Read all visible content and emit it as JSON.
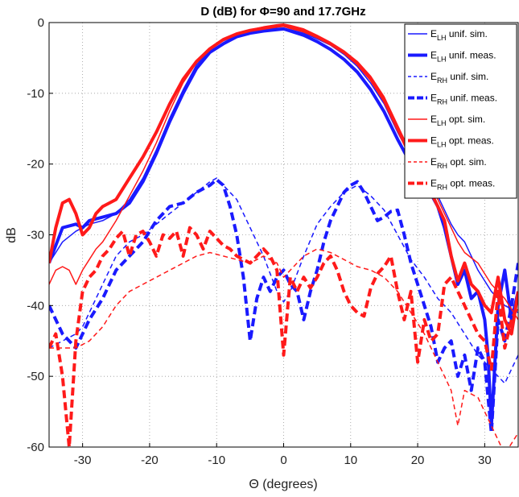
{
  "chart_data": {
    "type": "line",
    "title": "D (dB) for Φ=90 and 17.7GHz",
    "xlabel": "Θ (degrees)",
    "ylabel": "dB",
    "xlim": [
      -35,
      35
    ],
    "ylim": [
      -60,
      0
    ],
    "xticks": [
      -30,
      -20,
      -10,
      0,
      10,
      20,
      30
    ],
    "yticks": [
      0,
      -10,
      -20,
      -30,
      -40,
      -50,
      -60
    ],
    "grid": true,
    "legend_position": "top-right",
    "series": [
      {
        "name": "E_LH unif. sim.",
        "legend_main": "E",
        "legend_sub": "LH",
        "legend_rest": " unif. sim.",
        "color": "#1a1aff",
        "width": 1.5,
        "dash": "solid",
        "x": [
          -35,
          -33,
          -31,
          -30,
          -29,
          -27,
          -25,
          -23,
          -21,
          -19,
          -17,
          -15,
          -13,
          -11,
          -9,
          -7,
          -5,
          -3,
          -1,
          0,
          1,
          3,
          5,
          7,
          9,
          11,
          13,
          15,
          17,
          19,
          21,
          23,
          25,
          26,
          27,
          29,
          31,
          32,
          33,
          35
        ],
        "y": [
          -34,
          -31,
          -29.5,
          -29,
          -28.5,
          -28,
          -27,
          -25,
          -22,
          -18,
          -13.5,
          -9.5,
          -6,
          -3.8,
          -2.6,
          -1.8,
          -1.3,
          -1,
          -0.8,
          -0.8,
          -1,
          -1.5,
          -2.3,
          -3.2,
          -4.5,
          -6.2,
          -8.6,
          -11.5,
          -15.5,
          -19,
          -21.5,
          -24.5,
          -28.5,
          -30,
          -31,
          -35,
          -38,
          -39,
          -40,
          -41
        ]
      },
      {
        "name": "E_LH unif. meas.",
        "legend_main": "E",
        "legend_sub": "LH",
        "legend_rest": " unif. meas.",
        "color": "#1a1aff",
        "width": 4,
        "dash": "solid",
        "x": [
          -35,
          -33,
          -31,
          -30,
          -29,
          -27,
          -25,
          -23,
          -21,
          -19,
          -17,
          -15,
          -13,
          -11,
          -9,
          -7,
          -5,
          -3,
          -1,
          0,
          1,
          3,
          5,
          7,
          9,
          11,
          13,
          15,
          17,
          19,
          21,
          23,
          24,
          25,
          26,
          27,
          28,
          29,
          30,
          30.5,
          31,
          32,
          33,
          34,
          35
        ],
        "y": [
          -34,
          -29,
          -28.5,
          -29,
          -28,
          -27.5,
          -27,
          -25.5,
          -22.5,
          -18.5,
          -14,
          -10,
          -6.5,
          -4.2,
          -3,
          -2,
          -1.5,
          -1.2,
          -1,
          -0.9,
          -1.2,
          -1.8,
          -2.7,
          -3.8,
          -5.2,
          -7,
          -9.5,
          -12.6,
          -16.5,
          -20,
          -22.5,
          -26,
          -29,
          -33,
          -37,
          -35,
          -39,
          -38,
          -42,
          -47,
          -57,
          -40,
          -35,
          -42,
          -38
        ]
      },
      {
        "name": "E_RH unif. sim.",
        "legend_main": "E",
        "legend_sub": "RH",
        "legend_rest": " unif. sim.",
        "color": "#1a1aff",
        "width": 1.5,
        "dash": "6,4",
        "x": [
          -35,
          -33,
          -31,
          -30,
          -29,
          -27,
          -25,
          -23,
          -21,
          -19,
          -17,
          -15,
          -13,
          -11,
          -10,
          -9,
          -7,
          -5,
          -3,
          -1,
          0,
          1,
          3,
          5,
          7,
          9,
          11,
          13,
          15,
          17,
          19,
          21,
          23,
          25,
          27,
          29,
          31,
          33,
          35
        ],
        "y": [
          -46,
          -45,
          -44,
          -43,
          -41,
          -37,
          -33,
          -31,
          -30,
          -28.5,
          -27,
          -25.5,
          -24,
          -22.5,
          -22,
          -23,
          -25,
          -29,
          -33,
          -38,
          -39.5,
          -38,
          -33,
          -28.5,
          -26,
          -24,
          -23,
          -24.5,
          -26.5,
          -30,
          -33.5,
          -36,
          -39,
          -41,
          -44,
          -47,
          -49,
          -51,
          -47
        ]
      },
      {
        "name": "E_RH unif. meas.",
        "legend_main": "E",
        "legend_sub": "RH",
        "legend_rest": " unif. meas.",
        "color": "#1a1aff",
        "width": 4,
        "dash": "10,5",
        "x": [
          -35,
          -33,
          -31,
          -29,
          -27,
          -25,
          -23,
          -21,
          -19,
          -17,
          -15,
          -13,
          -11,
          -10,
          -9,
          -8,
          -7,
          -6,
          -5,
          -4,
          -3,
          -2,
          -1,
          0,
          1,
          2,
          3,
          4,
          5,
          6,
          7,
          8,
          9,
          10,
          11,
          12,
          13,
          14,
          15,
          16,
          17,
          18,
          19,
          20,
          21,
          22,
          23,
          24,
          25,
          26,
          27,
          28,
          29,
          30,
          31,
          32,
          33,
          34,
          35
        ],
        "y": [
          -40,
          -44,
          -46,
          -42,
          -39,
          -35,
          -33,
          -31,
          -28,
          -26,
          -25.5,
          -24,
          -23,
          -22.2,
          -23,
          -26,
          -30,
          -36,
          -45,
          -39,
          -36,
          -38,
          -36,
          -35,
          -37,
          -38,
          -42,
          -38,
          -35,
          -31,
          -28,
          -26,
          -24,
          -23,
          -22.5,
          -24,
          -26,
          -28,
          -27.5,
          -26.7,
          -26.5,
          -30,
          -34,
          -37,
          -40,
          -43,
          -48,
          -46,
          -45,
          -50,
          -47,
          -52,
          -46,
          -48,
          -58,
          -42,
          -45,
          -40,
          -34
        ]
      },
      {
        "name": "E_LH opt. sim.",
        "legend_main": "E",
        "legend_sub": "LH",
        "legend_rest": " opt. sim.",
        "color": "#ff1a1a",
        "width": 1.5,
        "dash": "solid",
        "x": [
          -35,
          -34,
          -33,
          -32,
          -31,
          -30,
          -29,
          -28,
          -27,
          -25,
          -23,
          -21,
          -19,
          -17,
          -15,
          -13,
          -11,
          -9,
          -7,
          -5,
          -3,
          -1,
          0,
          1,
          3,
          5,
          7,
          9,
          11,
          13,
          15,
          17,
          19,
          21,
          23,
          25,
          26,
          27,
          29,
          31,
          33,
          35
        ],
        "y": [
          -37,
          -35,
          -34.5,
          -35,
          -37,
          -35,
          -33.5,
          -32,
          -31,
          -28,
          -24.5,
          -21,
          -17,
          -12.5,
          -8.5,
          -5.7,
          -3.8,
          -2.4,
          -1.5,
          -1,
          -0.6,
          -0.3,
          -0.2,
          -0.4,
          -0.9,
          -1.8,
          -2.8,
          -4,
          -5.5,
          -7.6,
          -10.5,
          -14.5,
          -18.5,
          -21.5,
          -25,
          -29,
          -31,
          -32.5,
          -34,
          -37,
          -39,
          -42
        ]
      },
      {
        "name": "E_LH opt. meas.",
        "legend_main": "E",
        "legend_sub": "LH",
        "legend_rest": " opt. meas.",
        "color": "#ff1a1a",
        "width": 4,
        "dash": "solid",
        "x": [
          -35,
          -34,
          -33,
          -32,
          -31,
          -30,
          -29,
          -28,
          -27,
          -25,
          -23,
          -21,
          -19,
          -17,
          -15,
          -13,
          -11,
          -9,
          -7,
          -5,
          -3,
          -1,
          0,
          1,
          3,
          5,
          7,
          9,
          11,
          13,
          15,
          17,
          19,
          21,
          23,
          24,
          25,
          26,
          27,
          28,
          29,
          30,
          31,
          32,
          33,
          34,
          35
        ],
        "y": [
          -34,
          -29,
          -25.5,
          -25,
          -27,
          -30,
          -29,
          -27,
          -26,
          -25,
          -22,
          -19,
          -15.5,
          -11.5,
          -8,
          -5.5,
          -3.7,
          -2.4,
          -1.6,
          -1.1,
          -0.8,
          -0.5,
          -0.4,
          -0.7,
          -1.2,
          -2,
          -3,
          -4.2,
          -5.8,
          -8,
          -11,
          -15,
          -19,
          -22,
          -26,
          -28,
          -33,
          -36.5,
          -34,
          -37,
          -38,
          -40,
          -41,
          -36,
          -42,
          -44,
          -38
        ]
      },
      {
        "name": "E_RH opt. sim.",
        "legend_main": "E",
        "legend_sub": "RH",
        "legend_rest": " opt. sim.",
        "color": "#ff1a1a",
        "width": 1.5,
        "dash": "6,4",
        "x": [
          -35,
          -33,
          -31,
          -29,
          -27,
          -25,
          -23,
          -21,
          -19,
          -17,
          -15,
          -13,
          -11,
          -9,
          -7,
          -5,
          -3,
          -1,
          0,
          1,
          3,
          5,
          7,
          9,
          11,
          13,
          15,
          17,
          19,
          21,
          23,
          25,
          26,
          27,
          29,
          31,
          33,
          35
        ],
        "y": [
          -46,
          -46,
          -46,
          -45,
          -43,
          -40,
          -38,
          -37,
          -36,
          -35,
          -34,
          -33,
          -32.5,
          -33,
          -33.5,
          -34,
          -33,
          -34,
          -36,
          -35,
          -33,
          -32,
          -32.5,
          -33.5,
          -34.5,
          -35,
          -36,
          -38,
          -41,
          -44,
          -48,
          -52,
          -57,
          -52,
          -53,
          -57,
          -61,
          -58
        ]
      },
      {
        "name": "E_RH opt. meas.",
        "legend_main": "E",
        "legend_sub": "RH",
        "legend_rest": " opt. meas.",
        "color": "#ff1a1a",
        "width": 4,
        "dash": "10,5",
        "x": [
          -35,
          -34,
          -33,
          -32,
          -31,
          -30,
          -29,
          -28,
          -27,
          -26,
          -25,
          -24,
          -23,
          -22,
          -21,
          -20,
          -19,
          -18,
          -17,
          -16,
          -15,
          -14,
          -13,
          -12,
          -11,
          -10,
          -9,
          -8,
          -7,
          -6,
          -5,
          -4,
          -3,
          -2,
          -1,
          0,
          1,
          2,
          3,
          4,
          5,
          6,
          7,
          8,
          9,
          10,
          11,
          12,
          13,
          14,
          15,
          16,
          17,
          18,
          19,
          20,
          21,
          22,
          23,
          24,
          25,
          26,
          27,
          28,
          29,
          30,
          31,
          32,
          33,
          34,
          35
        ],
        "y": [
          -46,
          -44,
          -50,
          -60,
          -45,
          -38,
          -36,
          -35,
          -33,
          -32,
          -30.5,
          -29.5,
          -33,
          -30,
          -29.5,
          -31,
          -33,
          -30,
          -30.5,
          -29.5,
          -33,
          -29,
          -30,
          -32,
          -29.5,
          -30.5,
          -31.5,
          -32,
          -33,
          -33.5,
          -34,
          -33,
          -32,
          -33,
          -35,
          -47,
          -36,
          -38,
          -36,
          -37.5,
          -36,
          -34,
          -33,
          -35,
          -38,
          -40,
          -41,
          -41.5,
          -37.5,
          -35.5,
          -34.5,
          -33,
          -38,
          -42,
          -38,
          -48,
          -42,
          -45,
          -44,
          -37,
          -36,
          -38,
          -40,
          -42,
          -44,
          -45,
          -49,
          -38,
          -46,
          -42,
          -40
        ]
      }
    ]
  }
}
